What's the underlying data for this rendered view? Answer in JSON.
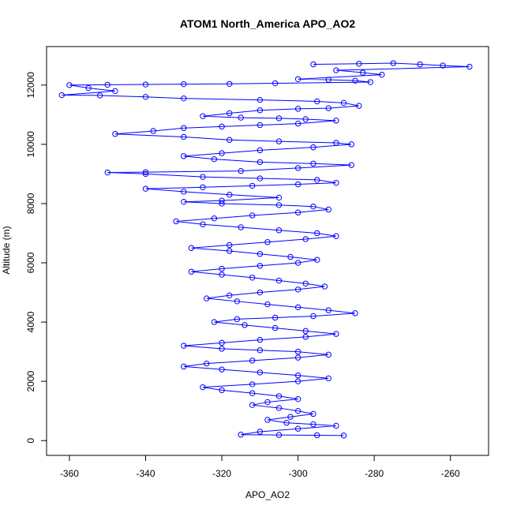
{
  "chart_data": {
    "type": "scatter",
    "title": "ATOM1 North_America APO_AO2",
    "xlabel": "APO_AO2",
    "ylabel": "Altitude (m)",
    "xlim": [
      -366,
      -250
    ],
    "ylim": [
      -500,
      13300
    ],
    "x_ticks": [
      -360,
      -340,
      -320,
      -300,
      -280,
      -260
    ],
    "y_ticks": [
      0,
      2000,
      4000,
      6000,
      8000,
      10000,
      12000
    ],
    "point_style": "open-circle",
    "connect_points": true,
    "color": "#0000ff",
    "grid": false,
    "legend": "none",
    "series": [
      {
        "values_note": "profile envelope read from plot; points ordered along flight track",
        "points": [
          [
            -296,
            12700
          ],
          [
            -284,
            12720
          ],
          [
            -275,
            12740
          ],
          [
            -268,
            12700
          ],
          [
            -262,
            12660
          ],
          [
            -255,
            12620
          ],
          [
            -290,
            12500
          ],
          [
            -283,
            12420
          ],
          [
            -278,
            12350
          ],
          [
            -300,
            12200
          ],
          [
            -292,
            12180
          ],
          [
            -285,
            12150
          ],
          [
            -281,
            12100
          ],
          [
            -306,
            12060
          ],
          [
            -318,
            12040
          ],
          [
            -330,
            12030
          ],
          [
            -340,
            12020
          ],
          [
            -350,
            12010
          ],
          [
            -360,
            12000
          ],
          [
            -355,
            11900
          ],
          [
            -348,
            11800
          ],
          [
            -362,
            11660
          ],
          [
            -352,
            11650
          ],
          [
            -340,
            11600
          ],
          [
            -330,
            11550
          ],
          [
            -310,
            11500
          ],
          [
            -295,
            11450
          ],
          [
            -288,
            11400
          ],
          [
            -284,
            11300
          ],
          [
            -292,
            11220
          ],
          [
            -300,
            11200
          ],
          [
            -310,
            11150
          ],
          [
            -318,
            11050
          ],
          [
            -325,
            10950
          ],
          [
            -315,
            10900
          ],
          [
            -305,
            10880
          ],
          [
            -298,
            10850
          ],
          [
            -290,
            10800
          ],
          [
            -300,
            10700
          ],
          [
            -310,
            10650
          ],
          [
            -320,
            10600
          ],
          [
            -330,
            10550
          ],
          [
            -338,
            10450
          ],
          [
            -348,
            10350
          ],
          [
            -330,
            10250
          ],
          [
            -318,
            10150
          ],
          [
            -305,
            10100
          ],
          [
            -290,
            10050
          ],
          [
            -286,
            10000
          ],
          [
            -296,
            9900
          ],
          [
            -310,
            9800
          ],
          [
            -320,
            9700
          ],
          [
            -330,
            9600
          ],
          [
            -322,
            9500
          ],
          [
            -310,
            9400
          ],
          [
            -296,
            9350
          ],
          [
            -286,
            9300
          ],
          [
            -300,
            9200
          ],
          [
            -315,
            9100
          ],
          [
            -340,
            9060
          ],
          [
            -350,
            9050
          ],
          [
            -340,
            9000
          ],
          [
            -325,
            8900
          ],
          [
            -310,
            8850
          ],
          [
            -295,
            8800
          ],
          [
            -290,
            8700
          ],
          [
            -300,
            8650
          ],
          [
            -312,
            8600
          ],
          [
            -325,
            8550
          ],
          [
            -340,
            8500
          ],
          [
            -330,
            8400
          ],
          [
            -318,
            8300
          ],
          [
            -305,
            8200
          ],
          [
            -320,
            8100
          ],
          [
            -330,
            8060
          ],
          [
            -320,
            8000
          ],
          [
            -305,
            7950
          ],
          [
            -296,
            7900
          ],
          [
            -292,
            7800
          ],
          [
            -300,
            7700
          ],
          [
            -312,
            7600
          ],
          [
            -322,
            7500
          ],
          [
            -332,
            7400
          ],
          [
            -325,
            7300
          ],
          [
            -315,
            7200
          ],
          [
            -305,
            7100
          ],
          [
            -295,
            7000
          ],
          [
            -290,
            6900
          ],
          [
            -298,
            6800
          ],
          [
            -308,
            6700
          ],
          [
            -318,
            6600
          ],
          [
            -328,
            6500
          ],
          [
            -318,
            6400
          ],
          [
            -310,
            6300
          ],
          [
            -302,
            6200
          ],
          [
            -295,
            6100
          ],
          [
            -300,
            6000
          ],
          [
            -310,
            5900
          ],
          [
            -320,
            5800
          ],
          [
            -328,
            5700
          ],
          [
            -320,
            5600
          ],
          [
            -312,
            5500
          ],
          [
            -305,
            5400
          ],
          [
            -298,
            5300
          ],
          [
            -293,
            5200
          ],
          [
            -300,
            5100
          ],
          [
            -310,
            5000
          ],
          [
            -318,
            4900
          ],
          [
            -324,
            4800
          ],
          [
            -316,
            4700
          ],
          [
            -308,
            4600
          ],
          [
            -300,
            4500
          ],
          [
            -292,
            4400
          ],
          [
            -285,
            4300
          ],
          [
            -296,
            4200
          ],
          [
            -306,
            4150
          ],
          [
            -316,
            4100
          ],
          [
            -322,
            4000
          ],
          [
            -314,
            3900
          ],
          [
            -306,
            3800
          ],
          [
            -298,
            3700
          ],
          [
            -290,
            3600
          ],
          [
            -298,
            3500
          ],
          [
            -310,
            3400
          ],
          [
            -320,
            3300
          ],
          [
            -330,
            3200
          ],
          [
            -320,
            3100
          ],
          [
            -310,
            3050
          ],
          [
            -300,
            3000
          ],
          [
            -292,
            2900
          ],
          [
            -300,
            2800
          ],
          [
            -312,
            2700
          ],
          [
            -324,
            2600
          ],
          [
            -330,
            2500
          ],
          [
            -320,
            2400
          ],
          [
            -310,
            2300
          ],
          [
            -300,
            2200
          ],
          [
            -292,
            2100
          ],
          [
            -300,
            2000
          ],
          [
            -312,
            1900
          ],
          [
            -325,
            1800
          ],
          [
            -320,
            1700
          ],
          [
            -312,
            1600
          ],
          [
            -305,
            1500
          ],
          [
            -300,
            1400
          ],
          [
            -308,
            1300
          ],
          [
            -312,
            1200
          ],
          [
            -305,
            1100
          ],
          [
            -300,
            1000
          ],
          [
            -296,
            900
          ],
          [
            -302,
            800
          ],
          [
            -308,
            700
          ],
          [
            -303,
            600
          ],
          [
            -296,
            550
          ],
          [
            -290,
            500
          ],
          [
            -300,
            400
          ],
          [
            -310,
            300
          ],
          [
            -315,
            200
          ],
          [
            -305,
            190
          ],
          [
            -295,
            180
          ],
          [
            -288,
            170
          ]
        ]
      }
    ]
  }
}
